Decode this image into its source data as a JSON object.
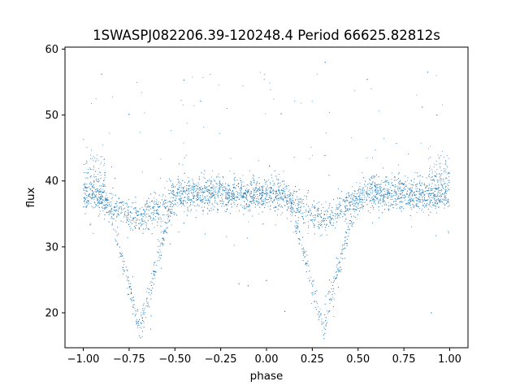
{
  "chart_data": {
    "type": "scatter",
    "title": "1SWASPJ082206.39-120248.4 Period 66625.82812s",
    "xlabel": "phase",
    "ylabel": "flux",
    "xlim": [
      -1.1,
      1.1
    ],
    "ylim": [
      14.7,
      60.3
    ],
    "xticks": [
      -1.0,
      -0.75,
      -0.5,
      -0.25,
      0.0,
      0.25,
      0.5,
      0.75,
      1.0
    ],
    "xtick_labels": [
      "−1.00",
      "−0.75",
      "−0.50",
      "−0.25",
      "0.00",
      "0.25",
      "0.50",
      "0.75",
      "1.00"
    ],
    "yticks": [
      20,
      30,
      40,
      50,
      60
    ],
    "ytick_labels": [
      "20",
      "30",
      "40",
      "50",
      "60"
    ],
    "grid": false,
    "legend": "none",
    "marker_color": "#1f77b4",
    "series": [
      {
        "name": "",
        "description_of_shape": "phase-folded eclipsing binary light curve repeated over two cycles",
        "baseline_flux": 38.0,
        "baseline_scatter": 1.3,
        "primary_minima": [
          {
            "phase": -0.69,
            "flux": 17.5,
            "half_width": 0.2
          },
          {
            "phase": 0.31,
            "flux": 17.5,
            "half_width": 0.2
          }
        ],
        "secondary_minima": [
          {
            "phase": -0.7,
            "flux": 34.5,
            "half_width": 0.27
          },
          {
            "phase": 0.3,
            "flux": 34.5,
            "half_width": 0.27
          }
        ],
        "sample_points": [
          [
            -1.0,
            38.0
          ],
          [
            -0.95,
            37.8
          ],
          [
            -0.9,
            35.5
          ],
          [
            -0.85,
            31.5
          ],
          [
            -0.8,
            26.5
          ],
          [
            -0.75,
            22.0
          ],
          [
            -0.7,
            18.0
          ],
          [
            -0.68,
            17.5
          ],
          [
            -0.65,
            19.5
          ],
          [
            -0.6,
            24.0
          ],
          [
            -0.55,
            28.0
          ],
          [
            -0.5,
            32.5
          ],
          [
            -0.45,
            36.0
          ],
          [
            -0.4,
            37.8
          ],
          [
            -0.25,
            38.0
          ],
          [
            0.0,
            38.0
          ],
          [
            0.05,
            37.8
          ],
          [
            0.1,
            35.5
          ],
          [
            0.15,
            31.5
          ],
          [
            0.2,
            26.5
          ],
          [
            0.25,
            22.0
          ],
          [
            0.3,
            18.0
          ],
          [
            0.32,
            17.5
          ],
          [
            0.35,
            19.5
          ],
          [
            0.4,
            24.0
          ],
          [
            0.45,
            28.0
          ],
          [
            0.5,
            32.5
          ],
          [
            0.55,
            36.0
          ],
          [
            0.6,
            37.8
          ],
          [
            0.75,
            38.0
          ],
          [
            1.0,
            38.0
          ]
        ],
        "outlier_examples": [
          [
            -0.9,
            56.2
          ],
          [
            -0.45,
            55.3
          ],
          [
            -0.36,
            52.1
          ],
          [
            0.32,
            58.0
          ],
          [
            0.55,
            55.4
          ],
          [
            0.88,
            56.5
          ],
          [
            -0.75,
            50.1
          ],
          [
            0.08,
            50.2
          ],
          [
            0.85,
            51.2
          ],
          [
            0.93,
            50.0
          ],
          [
            -0.1,
            24.1
          ],
          [
            0.0,
            24.9
          ],
          [
            -0.15,
            24.4
          ],
          [
            0.9,
            20.0
          ],
          [
            0.1,
            20.2
          ]
        ]
      }
    ]
  }
}
